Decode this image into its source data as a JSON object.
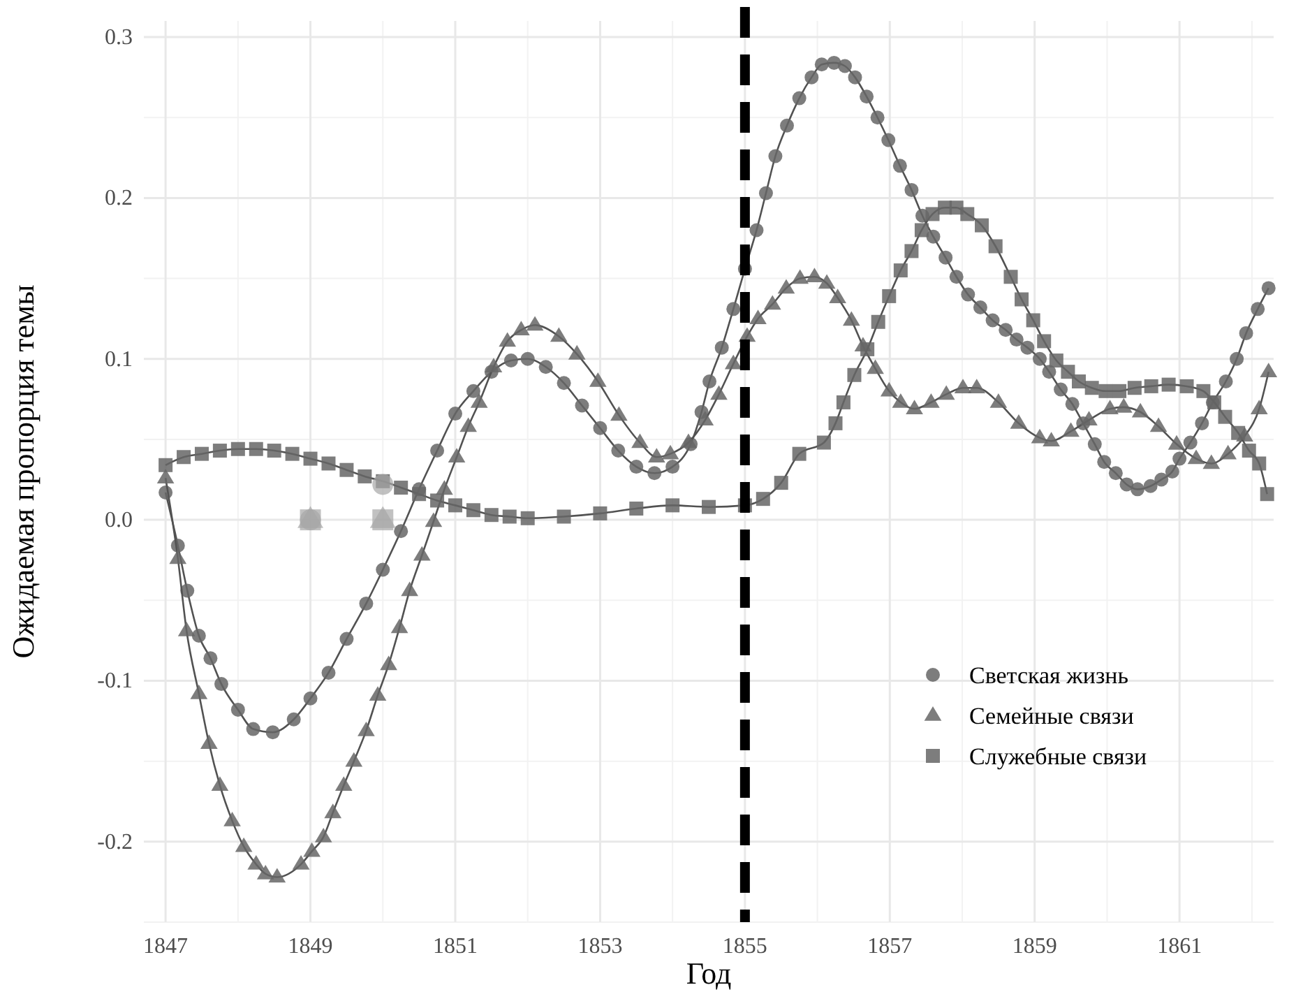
{
  "chart_data": {
    "type": "line",
    "xlabel": "Год",
    "ylabel": "Ожидаемая пропорция темы",
    "xlim": [
      1846.7,
      1862.3
    ],
    "xticks": [
      1847,
      1849,
      1851,
      1853,
      1855,
      1857,
      1859,
      1861
    ],
    "ylim": [
      -0.25,
      0.31
    ],
    "yticks": [
      {
        "value": -0.2,
        "label": "-0.2"
      },
      {
        "value": -0.1,
        "label": "-0.1"
      },
      {
        "value": 0,
        "label": "0.0"
      },
      0.1,
      0.2,
      0.3
    ],
    "grid": true,
    "legend": "bottom right",
    "line_style": "solid",
    "ref_lines": [
      {
        "axis": "x",
        "value": 1855,
        "color": "#000000",
        "line_style": "dashed"
      }
    ],
    "series": [
      {
        "name": "Светская жизнь",
        "color": "#666666",
        "marker": "circle",
        "x": [
          1847,
          1847.17,
          1847.3,
          1847.46,
          1847.62,
          1847.77,
          1848,
          1848.21,
          1848.48,
          1848.77,
          1849,
          1849.25,
          1849.5,
          1849.77,
          1850,
          1850.25,
          1850.5,
          1850.75,
          1851,
          1851.25,
          1851.5,
          1851.77,
          1852,
          1852.25,
          1852.5,
          1852.75,
          1853,
          1853.25,
          1853.5,
          1853.75,
          1854,
          1854.25,
          1854.4,
          1854.51,
          1854.68,
          1854.84,
          1855,
          1855.16,
          1855.29,
          1855.42,
          1855.58,
          1855.75,
          1855.92,
          1856.06,
          1856.23,
          1856.38,
          1856.52,
          1856.68,
          1856.83,
          1856.98,
          1857.14,
          1857.3,
          1857.45,
          1857.6,
          1857.77,
          1857.92,
          1858.08,
          1858.25,
          1858.42,
          1858.6,
          1858.75,
          1858.9,
          1859.07,
          1859.2,
          1859.36,
          1859.52,
          1859.67,
          1859.83,
          1859.96,
          1860.12,
          1860.27,
          1860.42,
          1860.6,
          1860.75,
          1860.9,
          1861,
          1861.15,
          1861.31,
          1861.46,
          1861.64,
          1861.79,
          1861.92,
          1862.08,
          1862.23
        ],
        "values": [
          0.017,
          -0.016,
          -0.044,
          -0.072,
          -0.086,
          -0.102,
          -0.118,
          -0.13,
          -0.132,
          -0.124,
          -0.111,
          -0.095,
          -0.074,
          -0.052,
          -0.031,
          -0.007,
          0.019,
          0.043,
          0.066,
          0.08,
          0.092,
          0.099,
          0.1,
          0.095,
          0.085,
          0.071,
          0.057,
          0.043,
          0.033,
          0.029,
          0.033,
          0.047,
          0.067,
          0.086,
          0.107,
          0.131,
          0.156,
          0.18,
          0.203,
          0.226,
          0.245,
          0.262,
          0.275,
          0.283,
          0.284,
          0.282,
          0.275,
          0.263,
          0.25,
          0.236,
          0.22,
          0.205,
          0.189,
          0.176,
          0.163,
          0.151,
          0.14,
          0.132,
          0.124,
          0.118,
          0.112,
          0.107,
          0.1,
          0.092,
          0.081,
          0.072,
          0.06,
          0.047,
          0.036,
          0.029,
          0.022,
          0.019,
          0.021,
          0.025,
          0.03,
          0.038,
          0.048,
          0.06,
          0.073,
          0.086,
          0.1,
          0.116,
          0.131,
          0.144
        ]
      },
      {
        "name": "Семейные связи",
        "color": "#666666",
        "marker": "triangle",
        "x": [
          1847,
          1847.17,
          1847.29,
          1847.46,
          1847.6,
          1847.75,
          1847.92,
          1848.08,
          1848.25,
          1848.38,
          1848.54,
          1848.87,
          1849.02,
          1849.18,
          1849.31,
          1849.46,
          1849.6,
          1849.77,
          1849.93,
          1850.08,
          1850.23,
          1850.37,
          1850.54,
          1850.7,
          1850.85,
          1851.02,
          1851.18,
          1851.33,
          1851.53,
          1851.72,
          1851.91,
          1852.1,
          1852.43,
          1852.68,
          1852.97,
          1853.26,
          1853.55,
          1853.78,
          1853.97,
          1854.22,
          1854.45,
          1854.64,
          1854.84,
          1855.03,
          1855.18,
          1855.38,
          1855.57,
          1855.76,
          1855.96,
          1856.13,
          1856.28,
          1856.47,
          1856.63,
          1856.8,
          1856.99,
          1857.15,
          1857.34,
          1857.57,
          1857.78,
          1858.01,
          1858.2,
          1858.5,
          1858.78,
          1859.07,
          1859.23,
          1859.5,
          1859.75,
          1860.04,
          1860.23,
          1860.46,
          1860.71,
          1860.96,
          1861.23,
          1861.44,
          1861.67,
          1861.9,
          1862.1,
          1862.23
        ],
        "values": [
          0.026,
          -0.024,
          -0.069,
          -0.108,
          -0.139,
          -0.165,
          -0.187,
          -0.203,
          -0.214,
          -0.22,
          -0.222,
          -0.214,
          -0.206,
          -0.197,
          -0.182,
          -0.165,
          -0.15,
          -0.131,
          -0.109,
          -0.09,
          -0.067,
          -0.044,
          -0.022,
          -0.001,
          0.019,
          0.039,
          0.058,
          0.073,
          0.095,
          0.111,
          0.118,
          0.121,
          0.114,
          0.103,
          0.086,
          0.065,
          0.048,
          0.039,
          0.041,
          0.048,
          0.062,
          0.078,
          0.097,
          0.114,
          0.125,
          0.134,
          0.144,
          0.15,
          0.151,
          0.147,
          0.138,
          0.124,
          0.108,
          0.094,
          0.08,
          0.073,
          0.069,
          0.073,
          0.078,
          0.082,
          0.082,
          0.073,
          0.06,
          0.051,
          0.049,
          0.055,
          0.062,
          0.069,
          0.07,
          0.067,
          0.058,
          0.047,
          0.038,
          0.035,
          0.041,
          0.052,
          0.069,
          0.092
        ]
      },
      {
        "name": "Служебные связи",
        "color": "#666666",
        "marker": "square",
        "x": [
          1847,
          1847.25,
          1847.5,
          1847.75,
          1848,
          1848.25,
          1848.5,
          1848.75,
          1849,
          1849.25,
          1849.5,
          1849.75,
          1850,
          1850.25,
          1850.5,
          1850.75,
          1851,
          1851.25,
          1851.5,
          1851.75,
          1852,
          1852.5,
          1853,
          1853.5,
          1854,
          1854.5,
          1855,
          1855.25,
          1855.5,
          1855.75,
          1856.09,
          1856.25,
          1856.36,
          1856.51,
          1856.69,
          1856.84,
          1856.99,
          1857.15,
          1857.3,
          1857.44,
          1857.59,
          1857.76,
          1857.92,
          1858.07,
          1858.27,
          1858.46,
          1858.67,
          1858.82,
          1858.98,
          1859.13,
          1859.3,
          1859.46,
          1859.61,
          1859.79,
          1859.98,
          1860.17,
          1860.38,
          1860.61,
          1860.85,
          1861.1,
          1861.33,
          1861.48,
          1861.63,
          1861.81,
          1861.96,
          1862.1,
          1862.21
        ],
        "values": [
          0.034,
          0.039,
          0.041,
          0.043,
          0.044,
          0.044,
          0.043,
          0.041,
          0.038,
          0.035,
          0.031,
          0.027,
          0.024,
          0.02,
          0.016,
          0.012,
          0.009,
          0.006,
          0.003,
          0.002,
          0.001,
          0.002,
          0.004,
          0.007,
          0.009,
          0.008,
          0.009,
          0.013,
          0.023,
          0.041,
          0.048,
          0.06,
          0.073,
          0.09,
          0.106,
          0.123,
          0.139,
          0.155,
          0.167,
          0.18,
          0.19,
          0.194,
          0.194,
          0.19,
          0.183,
          0.17,
          0.151,
          0.137,
          0.124,
          0.111,
          0.099,
          0.092,
          0.086,
          0.082,
          0.08,
          0.08,
          0.082,
          0.083,
          0.084,
          0.083,
          0.08,
          0.073,
          0.064,
          0.054,
          0.043,
          0.035,
          0.016
        ]
      },
      {
        "type": "scatter",
        "color": "#a6a6a6",
        "marker": "circle",
        "x": [
          1849,
          1850
        ],
        "values": [
          0,
          0.022
        ]
      },
      {
        "type": "scatter",
        "color": "#a6a6a6",
        "marker": "square",
        "x": [
          1849,
          1850
        ],
        "values": [
          0,
          0
        ]
      },
      {
        "type": "scatter",
        "color": "#a6a6a6",
        "marker": "triangle",
        "x": [
          1849,
          1850
        ],
        "values": [
          0,
          0
        ]
      }
    ]
  }
}
